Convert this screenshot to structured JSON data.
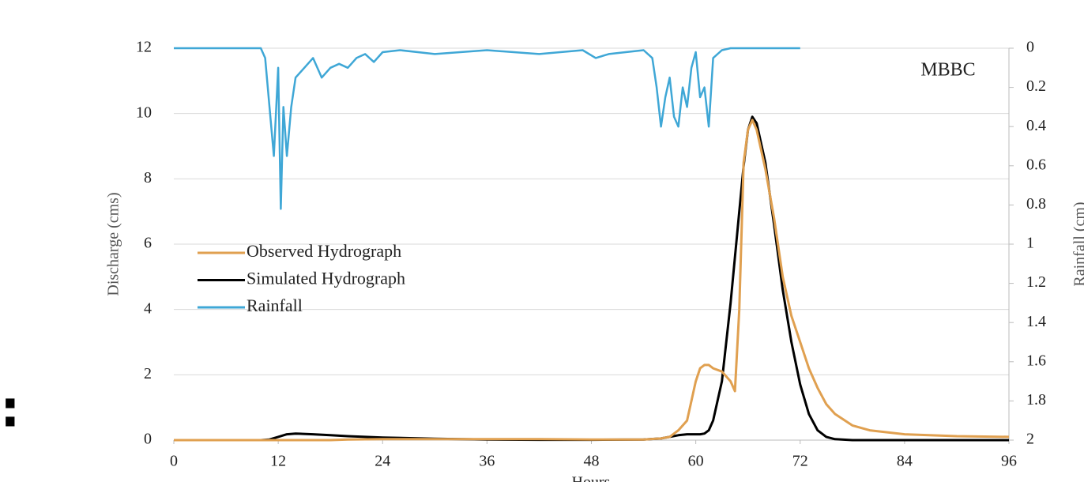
{
  "fragment": ":",
  "chart_data": {
    "type": "line",
    "annotation": "MBBC",
    "xlabel": "Hours",
    "ylabel": "Discharge (cms)",
    "y2label": "Rainfall (cm)",
    "xlim": [
      0,
      96
    ],
    "xticks": [
      0,
      12,
      24,
      36,
      48,
      60,
      72,
      84,
      96
    ],
    "ylim": [
      0,
      12
    ],
    "yticks": [
      0,
      2,
      4,
      6,
      8,
      10,
      12
    ],
    "y2lim": [
      0,
      2
    ],
    "y2_inverted": true,
    "y2ticks": [
      0,
      0.2,
      0.4,
      0.6,
      0.8,
      1,
      1.2,
      1.4,
      1.6,
      1.8,
      2
    ],
    "grid": true,
    "legend": "left",
    "x": [
      0,
      6,
      10,
      11,
      12,
      13,
      14,
      16,
      18,
      20,
      24,
      30,
      36,
      42,
      48,
      54,
      56,
      57,
      58,
      59,
      60,
      60.5,
      61,
      61.5,
      62,
      63,
      64,
      64.5,
      65,
      65.5,
      66,
      66.5,
      67,
      68,
      69,
      70,
      71,
      72,
      73,
      74,
      75,
      76,
      78,
      80,
      84,
      90,
      96
    ],
    "series": [
      {
        "name": "Observed Hydrograph",
        "color": "#e0a050",
        "values": [
          0,
          0,
          0,
          0,
          0,
          0,
          0,
          0,
          0,
          0.02,
          0.03,
          0.03,
          0.03,
          0.03,
          0.02,
          0.02,
          0.05,
          0.1,
          0.3,
          0.6,
          1.8,
          2.2,
          2.3,
          2.3,
          2.2,
          2.1,
          1.8,
          1.5,
          4,
          8.5,
          9.5,
          9.8,
          9.5,
          8.3,
          6.8,
          5.0,
          3.8,
          3.0,
          2.2,
          1.6,
          1.1,
          0.8,
          0.45,
          0.3,
          0.18,
          0.12,
          0.1
        ]
      },
      {
        "name": "Simulated Hydrograph",
        "color": "#000000",
        "values": [
          0,
          0,
          0,
          0.02,
          0.1,
          0.18,
          0.2,
          0.18,
          0.15,
          0.12,
          0.08,
          0.04,
          0.02,
          0.01,
          0.01,
          0.02,
          0.05,
          0.1,
          0.15,
          0.18,
          0.18,
          0.18,
          0.2,
          0.3,
          0.6,
          1.8,
          4.2,
          5.6,
          7.0,
          8.4,
          9.5,
          9.9,
          9.7,
          8.5,
          6.6,
          4.6,
          3.0,
          1.7,
          0.8,
          0.3,
          0.1,
          0.03,
          0,
          0,
          0,
          0,
          0
        ]
      },
      {
        "name": "Rainfall",
        "color": "#3fa7d6",
        "axis": "y2",
        "x": [
          0,
          10,
          10.5,
          11,
          11.5,
          12,
          12.3,
          12.6,
          13,
          13.5,
          14,
          15,
          16,
          17,
          18,
          19,
          20,
          21,
          22,
          23,
          24,
          26,
          30,
          36,
          42,
          47,
          48.5,
          50,
          54,
          55,
          55.5,
          56,
          56.5,
          57,
          57.5,
          58,
          58.5,
          59,
          59.5,
          60,
          60.5,
          61,
          61.5,
          62,
          63,
          64,
          72
        ],
        "values": [
          0,
          0,
          0.05,
          0.3,
          0.55,
          0.1,
          0.82,
          0.3,
          0.55,
          0.3,
          0.15,
          0.1,
          0.05,
          0.15,
          0.1,
          0.08,
          0.1,
          0.05,
          0.03,
          0.07,
          0.02,
          0.01,
          0.03,
          0.01,
          0.03,
          0.01,
          0.05,
          0.03,
          0.01,
          0.05,
          0.2,
          0.4,
          0.25,
          0.15,
          0.35,
          0.4,
          0.2,
          0.3,
          0.1,
          0.02,
          0.25,
          0.2,
          0.4,
          0.05,
          0.01,
          0,
          0
        ]
      }
    ]
  }
}
